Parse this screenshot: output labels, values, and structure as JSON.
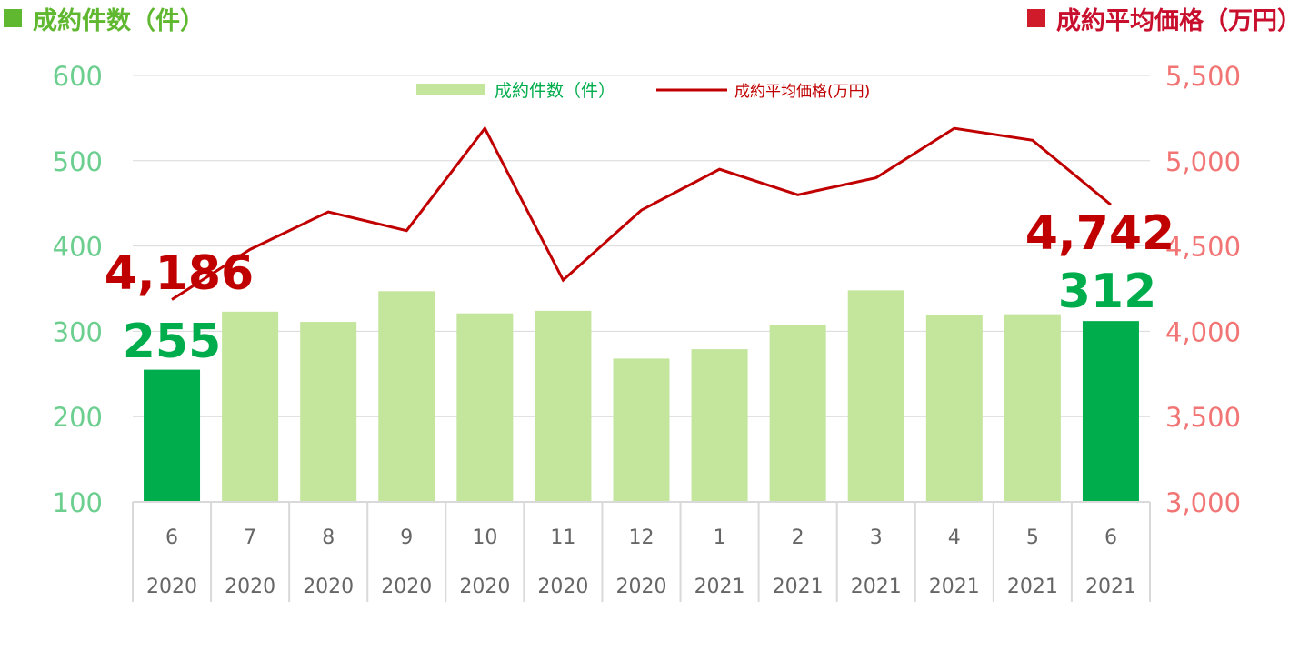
{
  "header": {
    "left_title": "成約件数（件）",
    "right_title": "成約平均価格（万円）"
  },
  "colors": {
    "bar": "#c3e59c",
    "bar_highlight": "#00ad4c",
    "line": "#c00000",
    "left_axis_text": "#6ccf8f",
    "right_axis_text": "#f27575",
    "grid": "#d9d9d9",
    "label_green": "#00ad4c",
    "label_red": "#c00000",
    "header_green": "#5fb830",
    "header_red": "#c8102e"
  },
  "chart_data": {
    "type": "bar+line",
    "categories": [
      {
        "month": "6",
        "year": "2020"
      },
      {
        "month": "7",
        "year": "2020"
      },
      {
        "month": "8",
        "year": "2020"
      },
      {
        "month": "9",
        "year": "2020"
      },
      {
        "month": "10",
        "year": "2020"
      },
      {
        "month": "11",
        "year": "2020"
      },
      {
        "month": "12",
        "year": "2020"
      },
      {
        "month": "1",
        "year": "2021"
      },
      {
        "month": "2",
        "year": "2021"
      },
      {
        "month": "3",
        "year": "2021"
      },
      {
        "month": "4",
        "year": "2021"
      },
      {
        "month": "5",
        "year": "2021"
      },
      {
        "month": "6",
        "year": "2021"
      }
    ],
    "series": [
      {
        "name": "成約件数（件）",
        "type": "bar",
        "axis": "left",
        "values": [
          255,
          323,
          311,
          347,
          321,
          324,
          268,
          279,
          307,
          348,
          319,
          320,
          312
        ],
        "highlight": [
          0,
          12
        ]
      },
      {
        "name": "成約平均価格(万円)",
        "type": "line",
        "axis": "right",
        "values": [
          4186,
          4480,
          4700,
          4590,
          5190,
          4300,
          4710,
          4950,
          4800,
          4900,
          5190,
          5120,
          4742
        ]
      }
    ],
    "y_left": {
      "min": 100,
      "max": 600,
      "ticks": [
        "100",
        "200",
        "300",
        "400",
        "500",
        "600"
      ]
    },
    "y_right": {
      "min": 3000,
      "max": 5500,
      "ticks": [
        "3,000",
        "3,500",
        "4,000",
        "4,500",
        "5,000",
        "5,500"
      ]
    },
    "legend_position": "top-center",
    "grid": true,
    "annotations": {
      "first_price": "4,186",
      "first_count": "255",
      "last_price": "4,742",
      "last_count": "312"
    }
  }
}
